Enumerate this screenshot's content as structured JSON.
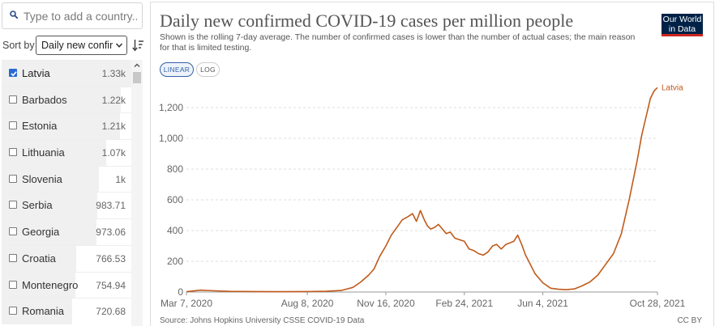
{
  "search": {
    "placeholder": "Type to add a country..."
  },
  "sort": {
    "label": "Sort by",
    "value": "Daily new confirmed cases per million"
  },
  "entities": [
    {
      "name": "Latvia",
      "value": "1.33k",
      "checked": true,
      "numeric": 1330
    },
    {
      "name": "Barbados",
      "value": "1.22k",
      "checked": false,
      "numeric": 1220
    },
    {
      "name": "Estonia",
      "value": "1.21k",
      "checked": false,
      "numeric": 1210
    },
    {
      "name": "Lithuania",
      "value": "1.07k",
      "checked": false,
      "numeric": 1070
    },
    {
      "name": "Slovenia",
      "value": "1k",
      "checked": false,
      "numeric": 1000
    },
    {
      "name": "Serbia",
      "value": "983.71",
      "checked": false,
      "numeric": 983.71
    },
    {
      "name": "Georgia",
      "value": "973.06",
      "checked": false,
      "numeric": 973.06
    },
    {
      "name": "Croatia",
      "value": "766.53",
      "checked": false,
      "numeric": 766.53
    },
    {
      "name": "Montenegro",
      "value": "754.94",
      "checked": false,
      "numeric": 754.94
    },
    {
      "name": "Romania",
      "value": "720.68",
      "checked": false,
      "numeric": 720.68
    }
  ],
  "logo": {
    "line1": "Our World",
    "line2": "in Data"
  },
  "toggles": {
    "linear": "LINEAR",
    "log": "LOG"
  },
  "source": "Source: Johns Hopkins University CSSE COVID-19 Data",
  "license": "CC BY",
  "colors": {
    "series": "#c15a1a",
    "accent": "#3360a9",
    "logo_bg": "#002147",
    "logo_bar": "#ce261e",
    "checkbox": "#2a6ad3"
  },
  "chart_data": {
    "type": "line",
    "title": "Daily new confirmed COVID-19 cases per million people",
    "subtitle": "Shown is the rolling 7-day average. The number of confirmed cases is lower than the number of actual cases; the main reason for that is limited testing.",
    "xlabel": "",
    "ylabel": "",
    "ylim": [
      0,
      1300
    ],
    "y_ticks": [
      0,
      200,
      400,
      600,
      800,
      1000,
      1200
    ],
    "y_tick_labels": [
      "0",
      "200",
      "400",
      "600",
      "800",
      "1,000",
      "1,200"
    ],
    "x_ticks": [
      "2020-03-07",
      "2020-08-08",
      "2020-11-16",
      "2021-02-24",
      "2021-06-04",
      "2021-10-28"
    ],
    "x_tick_labels": [
      "Mar 7, 2020",
      "Aug 8, 2020",
      "Nov 16, 2020",
      "Feb 24, 2021",
      "Jun 4, 2021",
      "Oct 28, 2021"
    ],
    "xlim": [
      "2020-03-07",
      "2021-10-28"
    ],
    "grid": "horizontal",
    "series": [
      {
        "name": "Latvia",
        "x": [
          "2020-03-07",
          "2020-03-25",
          "2020-04-12",
          "2020-05-01",
          "2020-06-01",
          "2020-07-01",
          "2020-08-08",
          "2020-09-01",
          "2020-09-20",
          "2020-10-05",
          "2020-10-15",
          "2020-10-25",
          "2020-11-01",
          "2020-11-08",
          "2020-11-16",
          "2020-11-23",
          "2020-11-30",
          "2020-12-07",
          "2020-12-14",
          "2020-12-20",
          "2020-12-25",
          "2020-12-30",
          "2021-01-04",
          "2021-01-08",
          "2021-01-12",
          "2021-01-17",
          "2021-01-22",
          "2021-01-27",
          "2021-02-01",
          "2021-02-06",
          "2021-02-12",
          "2021-02-18",
          "2021-02-24",
          "2021-03-02",
          "2021-03-08",
          "2021-03-14",
          "2021-03-20",
          "2021-03-26",
          "2021-04-01",
          "2021-04-06",
          "2021-04-12",
          "2021-04-18",
          "2021-04-23",
          "2021-04-28",
          "2021-05-03",
          "2021-05-08",
          "2021-05-13",
          "2021-05-18",
          "2021-05-25",
          "2021-06-04",
          "2021-06-14",
          "2021-06-24",
          "2021-07-04",
          "2021-07-14",
          "2021-07-24",
          "2021-08-03",
          "2021-08-13",
          "2021-08-23",
          "2021-09-02",
          "2021-09-12",
          "2021-09-22",
          "2021-10-02",
          "2021-10-08",
          "2021-10-14",
          "2021-10-19",
          "2021-10-24",
          "2021-10-28"
        ],
        "values": [
          2,
          12,
          8,
          4,
          3,
          2,
          3,
          5,
          10,
          30,
          65,
          110,
          150,
          230,
          300,
          370,
          420,
          470,
          490,
          510,
          460,
          530,
          470,
          430,
          410,
          420,
          440,
          410,
          380,
          390,
          350,
          340,
          330,
          280,
          270,
          250,
          240,
          260,
          300,
          310,
          280,
          310,
          320,
          330,
          370,
          310,
          240,
          190,
          120,
          60,
          25,
          18,
          15,
          20,
          40,
          65,
          110,
          180,
          250,
          380,
          600,
          850,
          1020,
          1150,
          1260,
          1310,
          1330
        ]
      }
    ]
  }
}
